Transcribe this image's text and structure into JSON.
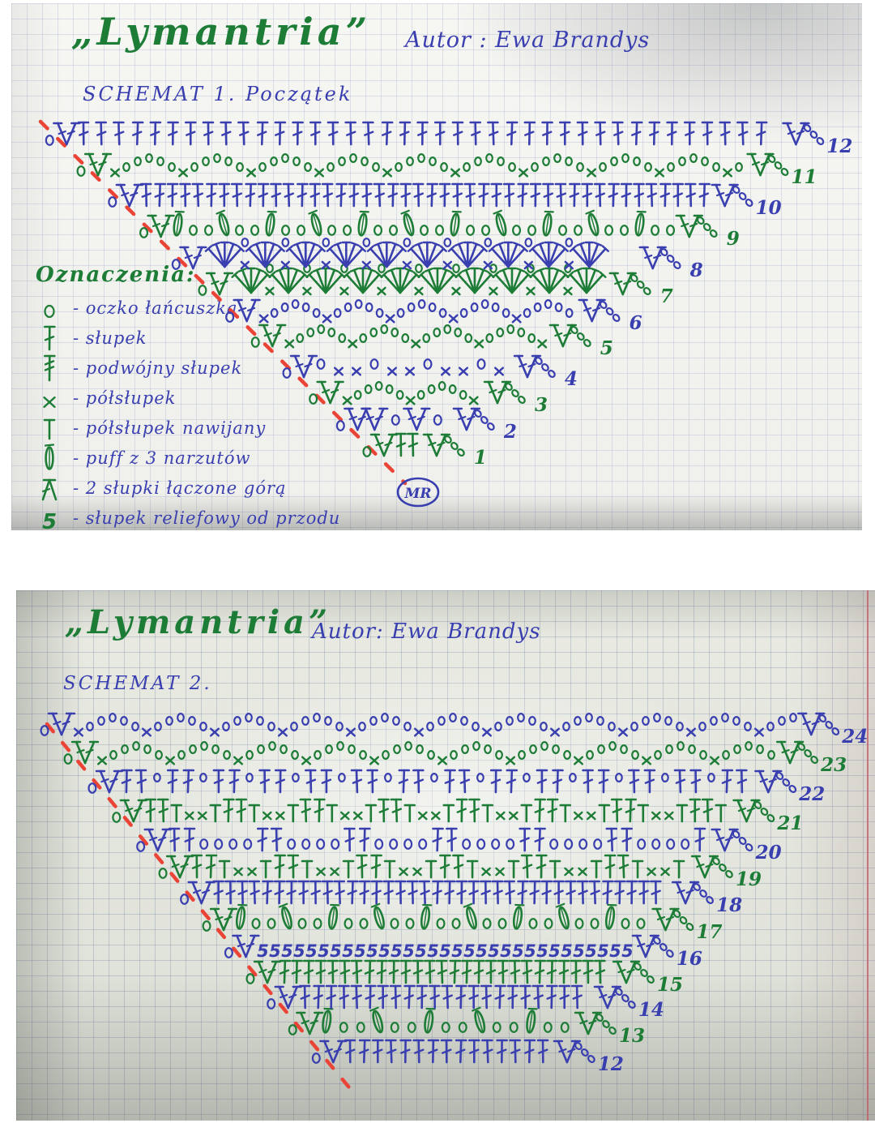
{
  "colors": {
    "ink_blue": "#3a3fb0",
    "ink_green": "#1d7c36",
    "ink_red": "#ea4437",
    "margin_red": "#c35c68"
  },
  "photo1": {
    "title": "„Lymantria”",
    "author": "Autor : Ewa Brandys",
    "subtitle": "SCHEMAT 1. Początek",
    "magic_ring_label": "MR",
    "legend": {
      "heading": "Oznaczenia:",
      "items": [
        {
          "symbol": "chain-o",
          "label": "- oczko łańcuszka"
        },
        {
          "symbol": "dc",
          "label": "- słupek"
        },
        {
          "symbol": "dc2",
          "label": "- podwójny słupek"
        },
        {
          "symbol": "hdc-x",
          "label": "- półsłupek"
        },
        {
          "symbol": "hdc-T",
          "label": "- półsłupek nawijany"
        },
        {
          "symbol": "puff",
          "label": "- puff z 3 narzutów"
        },
        {
          "symbol": "join2",
          "label": "- 2 słupki łączone górą"
        },
        {
          "symbol": "relief",
          "label": "- słupek reliefowy od przodu"
        }
      ]
    },
    "rows": [
      {
        "num": "1",
        "ink": "green",
        "pattern": "dc",
        "spacing": 15
      },
      {
        "num": "2",
        "ink": "blue",
        "pattern": "vrow",
        "spacing": 26
      },
      {
        "num": "3",
        "ink": "green",
        "pattern": "zigzag",
        "spacing": 13
      },
      {
        "num": "4",
        "ink": "blue",
        "pattern": "oxx",
        "spacing": 22
      },
      {
        "num": "5",
        "ink": "green",
        "pattern": "zigzag",
        "spacing": 13
      },
      {
        "num": "6",
        "ink": "blue",
        "pattern": "zigzag",
        "spacing": 13
      },
      {
        "num": "7",
        "ink": "green",
        "pattern": "fan",
        "spacing": 46
      },
      {
        "num": "8",
        "ink": "blue",
        "pattern": "fan",
        "spacing": 50
      },
      {
        "num": "9",
        "ink": "green",
        "pattern": "puffrow",
        "spacing": 19
      },
      {
        "num": "10",
        "ink": "blue",
        "pattern": "dc",
        "spacing": 16
      },
      {
        "num": "11",
        "ink": "green",
        "pattern": "zigzag",
        "spacing": 14
      },
      {
        "num": "12",
        "ink": "blue",
        "pattern": "dc",
        "spacing": 22
      }
    ]
  },
  "photo2": {
    "title": "„Lymantria”",
    "author": "Autor: Ewa Brandys",
    "subtitle": "SCHEMAT 2.",
    "rows": [
      {
        "num": "12",
        "ink": "blue",
        "pattern": "dc",
        "spacing": 17
      },
      {
        "num": "13",
        "ink": "green",
        "pattern": "puffrow",
        "spacing": 21
      },
      {
        "num": "14",
        "ink": "blue",
        "pattern": "dc",
        "spacing": 16
      },
      {
        "num": "15",
        "ink": "green",
        "pattern": "dc",
        "spacing": 15
      },
      {
        "num": "16",
        "ink": "blue",
        "pattern": "relief",
        "spacing": 15
      },
      {
        "num": "17",
        "ink": "green",
        "pattern": "puffrow",
        "spacing": 19
      },
      {
        "num": "18",
        "ink": "blue",
        "pattern": "dc",
        "spacing": 15
      },
      {
        "num": "19",
        "ink": "green",
        "pattern": "dcmix",
        "spacing": 17
      },
      {
        "num": "20",
        "ink": "blue",
        "pattern": "dcchain",
        "spacing": 18
      },
      {
        "num": "21",
        "ink": "green",
        "pattern": "dcmix",
        "spacing": 16
      },
      {
        "num": "22",
        "ink": "blue",
        "pattern": "dcpairs",
        "spacing": 19
      },
      {
        "num": "23",
        "ink": "green",
        "pattern": "zigzag",
        "spacing": 14
      },
      {
        "num": "24",
        "ink": "blue",
        "pattern": "zigzag",
        "spacing": 14
      }
    ]
  }
}
